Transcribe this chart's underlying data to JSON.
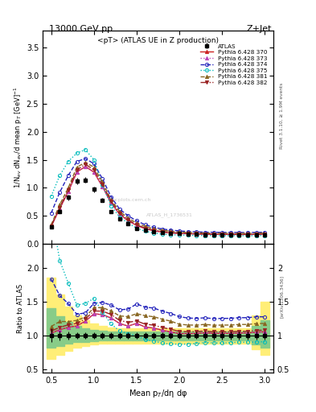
{
  "title_top": "13000 GeV pp",
  "title_right": "Z+Jet",
  "subtitle": "<pT> (ATLAS UE in Z production)",
  "ylabel_main": "1/N$_{ev}$ dN$_{ev}$/d mean p$_T$ [GeV]$^{-1}$",
  "ylabel_ratio": "Ratio to ATLAS",
  "xlabel": "Mean p$_{T}$/dη dφ",
  "right_label_top": "Rivet 3.1.10, ≥ 1.9M events",
  "right_label_bot": "[arXiv:1306.3436]",
  "watermark": "mcplots.cern.ch",
  "watermark2": "ATLAS_H_1736531",
  "x": [
    0.5,
    0.6,
    0.7,
    0.8,
    0.9,
    1.0,
    1.1,
    1.2,
    1.3,
    1.4,
    1.5,
    1.6,
    1.7,
    1.8,
    1.9,
    2.0,
    2.1,
    2.2,
    2.3,
    2.4,
    2.5,
    2.6,
    2.7,
    2.8,
    2.9,
    3.0
  ],
  "atlas_y": [
    0.3,
    0.58,
    0.83,
    1.12,
    1.14,
    0.97,
    0.78,
    0.58,
    0.45,
    0.36,
    0.28,
    0.24,
    0.21,
    0.195,
    0.185,
    0.18,
    0.175,
    0.17,
    0.165,
    0.165,
    0.163,
    0.162,
    0.16,
    0.16,
    0.16,
    0.163
  ],
  "atlas_yerr": [
    0.03,
    0.04,
    0.05,
    0.055,
    0.055,
    0.05,
    0.04,
    0.03,
    0.02,
    0.018,
    0.014,
    0.012,
    0.01,
    0.01,
    0.009,
    0.009,
    0.009,
    0.009,
    0.009,
    0.009,
    0.009,
    0.009,
    0.009,
    0.009,
    0.009,
    0.009
  ],
  "py370_y": [
    0.31,
    0.63,
    0.93,
    1.28,
    1.38,
    1.28,
    1.02,
    0.73,
    0.53,
    0.41,
    0.33,
    0.27,
    0.233,
    0.21,
    0.195,
    0.185,
    0.18,
    0.175,
    0.172,
    0.17,
    0.168,
    0.167,
    0.166,
    0.166,
    0.168,
    0.172
  ],
  "py373_y": [
    0.31,
    0.63,
    0.93,
    1.28,
    1.38,
    1.28,
    1.02,
    0.73,
    0.53,
    0.41,
    0.33,
    0.27,
    0.233,
    0.21,
    0.195,
    0.185,
    0.18,
    0.175,
    0.172,
    0.17,
    0.168,
    0.167,
    0.166,
    0.166,
    0.168,
    0.172
  ],
  "py374_y": [
    0.55,
    0.92,
    1.22,
    1.47,
    1.52,
    1.43,
    1.16,
    0.84,
    0.62,
    0.5,
    0.41,
    0.34,
    0.295,
    0.265,
    0.245,
    0.23,
    0.22,
    0.213,
    0.208,
    0.206,
    0.204,
    0.203,
    0.202,
    0.202,
    0.204,
    0.208
  ],
  "py375_y": [
    0.85,
    1.22,
    1.47,
    1.62,
    1.68,
    1.5,
    1.05,
    0.68,
    0.48,
    0.37,
    0.28,
    0.225,
    0.193,
    0.173,
    0.162,
    0.157,
    0.153,
    0.15,
    0.148,
    0.147,
    0.145,
    0.145,
    0.144,
    0.144,
    0.145,
    0.148
  ],
  "py381_y": [
    0.34,
    0.7,
    1.0,
    1.37,
    1.45,
    1.37,
    1.1,
    0.79,
    0.58,
    0.46,
    0.37,
    0.31,
    0.268,
    0.242,
    0.224,
    0.21,
    0.202,
    0.196,
    0.192,
    0.19,
    0.188,
    0.187,
    0.186,
    0.186,
    0.188,
    0.192
  ],
  "py382_y": [
    0.32,
    0.65,
    0.96,
    1.32,
    1.42,
    1.32,
    1.06,
    0.76,
    0.55,
    0.43,
    0.34,
    0.28,
    0.242,
    0.218,
    0.202,
    0.191,
    0.185,
    0.18,
    0.176,
    0.174,
    0.172,
    0.171,
    0.17,
    0.17,
    0.172,
    0.176
  ],
  "green_band_lo": [
    0.82,
    0.85,
    0.88,
    0.9,
    0.91,
    0.92,
    0.93,
    0.93,
    0.93,
    0.93,
    0.93,
    0.93,
    0.93,
    0.93,
    0.93,
    0.93,
    0.93,
    0.93,
    0.93,
    0.93,
    0.93,
    0.93,
    0.93,
    0.93,
    0.87,
    0.82
  ],
  "green_band_hi": [
    1.4,
    1.28,
    1.2,
    1.14,
    1.1,
    1.08,
    1.07,
    1.06,
    1.06,
    1.06,
    1.06,
    1.06,
    1.06,
    1.06,
    1.06,
    1.06,
    1.06,
    1.06,
    1.06,
    1.06,
    1.06,
    1.06,
    1.06,
    1.06,
    1.14,
    1.22
  ],
  "yellow_band_lo": [
    0.65,
    0.72,
    0.78,
    0.82,
    0.85,
    0.87,
    0.88,
    0.88,
    0.88,
    0.88,
    0.88,
    0.88,
    0.88,
    0.88,
    0.88,
    0.88,
    0.88,
    0.88,
    0.88,
    0.88,
    0.88,
    0.88,
    0.88,
    0.88,
    0.8,
    0.72
  ],
  "yellow_band_hi": [
    1.85,
    1.6,
    1.42,
    1.3,
    1.22,
    1.18,
    1.14,
    1.12,
    1.1,
    1.1,
    1.1,
    1.1,
    1.1,
    1.1,
    1.1,
    1.1,
    1.1,
    1.1,
    1.1,
    1.1,
    1.1,
    1.1,
    1.1,
    1.1,
    1.3,
    1.5
  ],
  "color_370": "#cc2222",
  "color_373": "#bb44bb",
  "color_374": "#2222bb",
  "color_375": "#00bbbb",
  "color_381": "#886622",
  "color_382": "#992222",
  "ylim_main": [
    0.0,
    3.8
  ],
  "ylim_ratio": [
    0.45,
    2.35
  ],
  "yticks_main": [
    0.0,
    0.5,
    1.0,
    1.5,
    2.0,
    2.5,
    3.0,
    3.5
  ],
  "yticks_ratio": [
    0.5,
    1.0,
    1.5,
    2.0
  ],
  "xlim": [
    0.4,
    3.1
  ]
}
